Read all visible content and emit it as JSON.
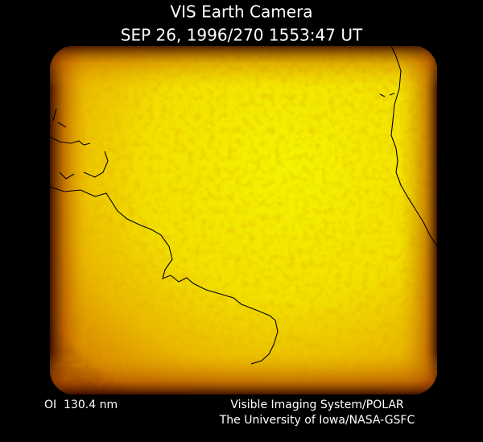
{
  "header": {
    "title": "VIS Earth Camera",
    "timestamp": "SEP 26, 1996/270 1553:47 UT"
  },
  "footer": {
    "filter": "OI  130.4 nm",
    "instrument": "Visible Imaging System/POLAR",
    "credit": "The University of Iowa/NASA-GSFC"
  }
}
